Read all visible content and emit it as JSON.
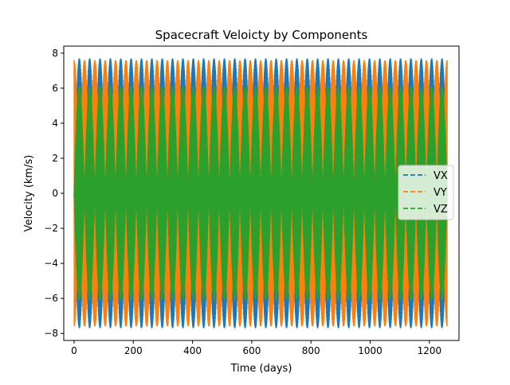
{
  "chart_data": {
    "type": "line",
    "title": "Spacecraft Veloicty by Components",
    "xlabel": "Time (days)",
    "ylabel": "Velocity (km/s)",
    "xlim": [
      -35,
      1300
    ],
    "ylim": [
      -8.4,
      8.4
    ],
    "x_ticks": [
      0,
      200,
      400,
      600,
      800,
      1000,
      1200
    ],
    "y_ticks": [
      -8,
      -6,
      -4,
      -2,
      0,
      2,
      4,
      6,
      8
    ],
    "x_tick_labels": [
      "0",
      "200",
      "400",
      "600",
      "800",
      "1000",
      "1200"
    ],
    "y_tick_labels": [
      "−8",
      "−6",
      "−4",
      "−2",
      "0",
      "2",
      "4",
      "6",
      "8"
    ],
    "x_range": [
      0,
      1260
    ],
    "oscillation_period_days": 35,
    "grid": false,
    "legend_position": "center right",
    "series": [
      {
        "name": "VX",
        "color": "#1f77b4",
        "linestyle": "dashed",
        "amplitude": 7.7,
        "phase_days": 0
      },
      {
        "name": "VY",
        "color": "#ff7f0e",
        "linestyle": "dashed",
        "amplitude": 7.6,
        "phase_days": 17.5
      },
      {
        "name": "VZ",
        "color": "#2ca02c",
        "linestyle": "dashed",
        "amplitude": 6.1,
        "phase_days": 0
      }
    ]
  }
}
